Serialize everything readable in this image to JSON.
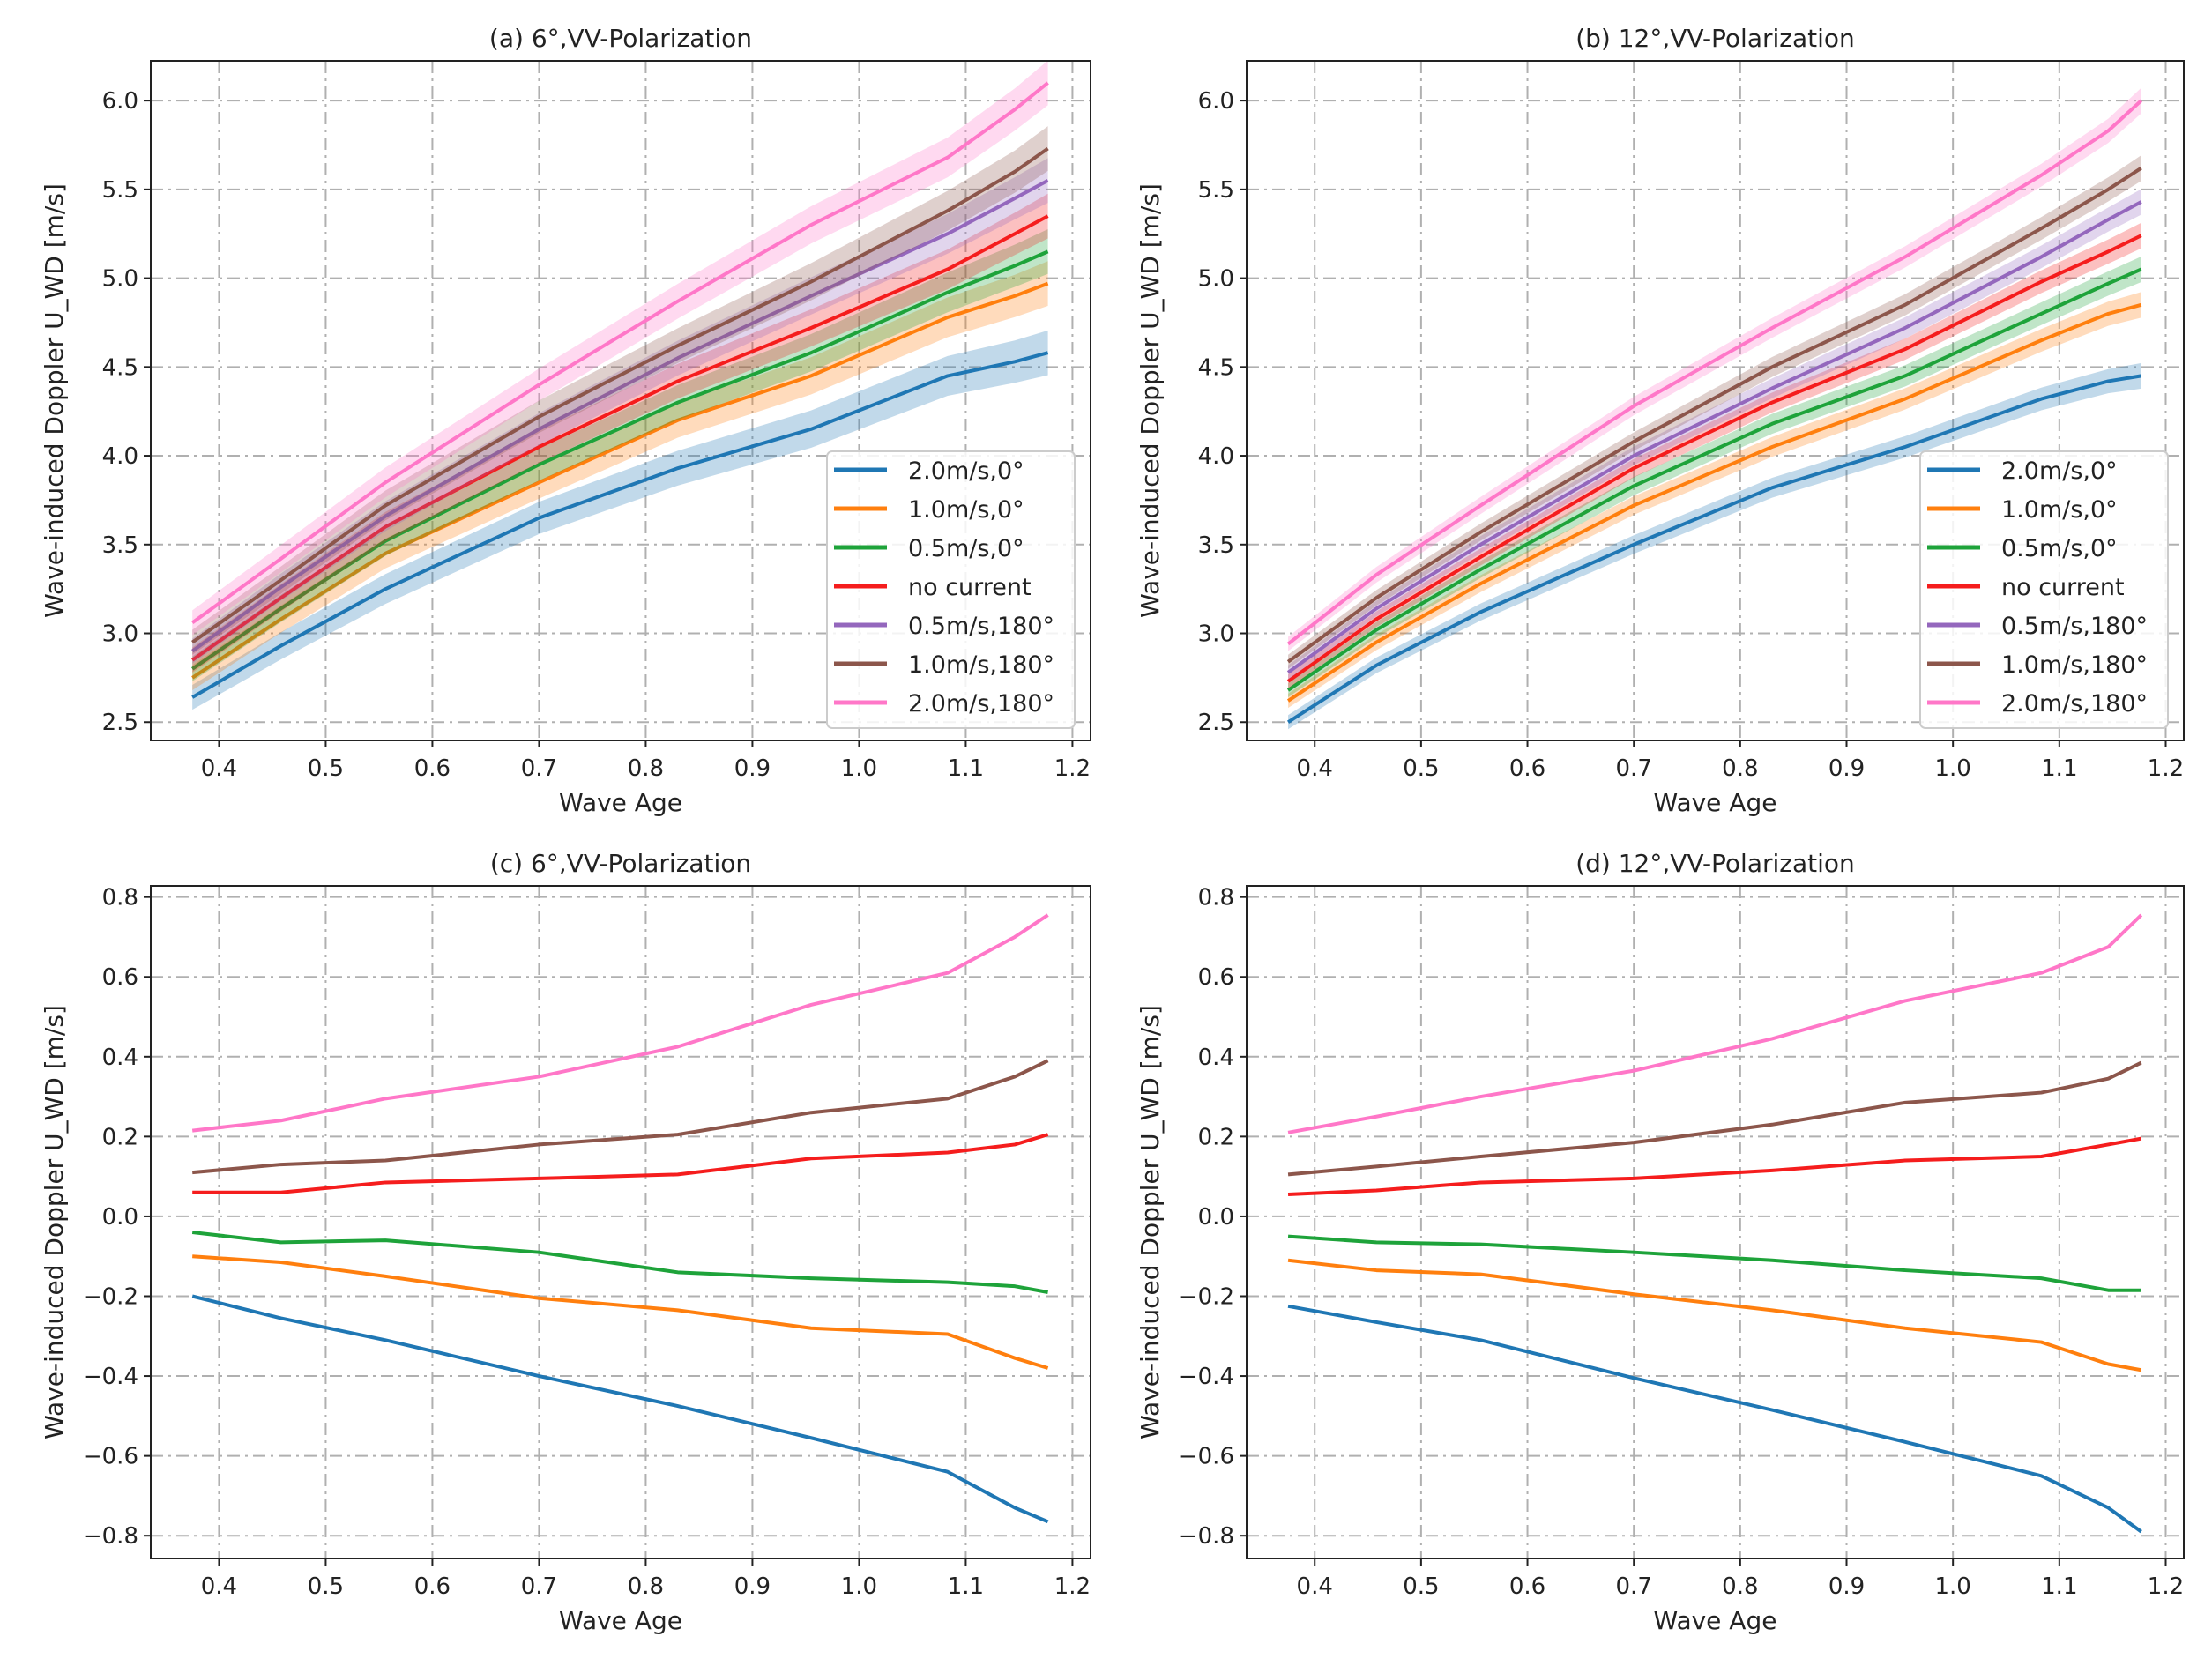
{
  "chart_data": [
    {
      "type": "line",
      "panel": "a",
      "title": "(a) 6°,VV-Polarization",
      "xlabel": "Wave Age",
      "ylabel": "Wave-induced Doppler U_WD [m/s]",
      "xlim": [
        0.336,
        1.217
      ],
      "ylim": [
        2.397,
        6.224
      ],
      "xticks": [
        0.4,
        0.5,
        0.6,
        0.7,
        0.8,
        0.9,
        1.0,
        1.1,
        1.2
      ],
      "xtick_labels": [
        "0.4",
        "0.5",
        "0.6",
        "0.7",
        "0.8",
        "0.9",
        "1.0",
        "1.1",
        "1.2"
      ],
      "yticks": [
        2.5,
        3.0,
        3.5,
        4.0,
        4.5,
        5.0,
        5.5,
        6.0
      ],
      "ytick_labels": [
        "2.5",
        "3.0",
        "3.5",
        "4.0",
        "4.5",
        "5.0",
        "5.5",
        "6.0"
      ],
      "grid": true,
      "legend": "lower-right",
      "band": 0.07,
      "x": [
        0.375,
        0.458,
        0.556,
        0.7,
        0.83,
        0.955,
        1.083,
        1.146,
        1.177
      ],
      "series": [
        {
          "name": "2.0m/s,0°",
          "color": "#1f77b4",
          "values": [
            2.64,
            2.93,
            3.25,
            3.65,
            3.93,
            4.15,
            4.45,
            4.53,
            4.58
          ]
        },
        {
          "name": "1.0m/s,0°",
          "color": "#ff7f0e",
          "values": [
            2.75,
            3.08,
            3.45,
            3.85,
            4.2,
            4.45,
            4.78,
            4.9,
            4.97
          ]
        },
        {
          "name": "0.5m/s,0°",
          "color": "#1ea33a",
          "values": [
            2.8,
            3.14,
            3.52,
            3.95,
            4.3,
            4.58,
            4.92,
            5.07,
            5.15
          ]
        },
        {
          "name": "no current",
          "color": "#f51d1d",
          "values": [
            2.85,
            3.2,
            3.6,
            4.05,
            4.42,
            4.72,
            5.05,
            5.25,
            5.35
          ]
        },
        {
          "name": "0.5m/s,180°",
          "color": "#9467bd",
          "values": [
            2.9,
            3.26,
            3.66,
            4.15,
            4.55,
            4.9,
            5.25,
            5.45,
            5.55
          ]
        },
        {
          "name": "1.0m/s,180°",
          "color": "#8c564b",
          "values": [
            2.95,
            3.3,
            3.72,
            4.22,
            4.62,
            4.98,
            5.38,
            5.6,
            5.73
          ]
        },
        {
          "name": "2.0m/s,180°",
          "color": "#ff77c8",
          "values": [
            3.06,
            3.42,
            3.85,
            4.4,
            4.87,
            5.3,
            5.68,
            5.95,
            6.1
          ]
        }
      ]
    },
    {
      "type": "line",
      "panel": "b",
      "title": "(b) 12°,VV-Polarization",
      "xlabel": "Wave Age",
      "ylabel": "Wave-induced Doppler U_WD [m/s]",
      "xlim": [
        0.336,
        1.217
      ],
      "ylim": [
        2.397,
        6.224
      ],
      "xticks": [
        0.4,
        0.5,
        0.6,
        0.7,
        0.8,
        0.9,
        1.0,
        1.1,
        1.2
      ],
      "xtick_labels": [
        "0.4",
        "0.5",
        "0.6",
        "0.7",
        "0.8",
        "0.9",
        "1.0",
        "1.1",
        "1.2"
      ],
      "yticks": [
        2.5,
        3.0,
        3.5,
        4.0,
        4.5,
        5.0,
        5.5,
        6.0
      ],
      "ytick_labels": [
        "2.5",
        "3.0",
        "3.5",
        "4.0",
        "4.5",
        "5.0",
        "5.5",
        "6.0"
      ],
      "grid": true,
      "legend": "lower-right",
      "band": 0.04,
      "x": [
        0.375,
        0.458,
        0.556,
        0.7,
        0.83,
        0.955,
        1.083,
        1.146,
        1.177
      ],
      "series": [
        {
          "name": "2.0m/s,0°",
          "color": "#1f77b4",
          "values": [
            2.5,
            2.82,
            3.12,
            3.5,
            3.82,
            4.05,
            4.32,
            4.42,
            4.45
          ]
        },
        {
          "name": "1.0m/s,0°",
          "color": "#ff7f0e",
          "values": [
            2.62,
            2.95,
            3.28,
            3.72,
            4.05,
            4.32,
            4.65,
            4.8,
            4.85
          ]
        },
        {
          "name": "0.5m/s,0°",
          "color": "#1ea33a",
          "values": [
            2.68,
            3.02,
            3.36,
            3.83,
            4.18,
            4.45,
            4.8,
            4.97,
            5.05
          ]
        },
        {
          "name": "no current",
          "color": "#f51d1d",
          "values": [
            2.73,
            3.08,
            3.43,
            3.93,
            4.3,
            4.6,
            4.98,
            5.15,
            5.24
          ]
        },
        {
          "name": "0.5m/s,180°",
          "color": "#9467bd",
          "values": [
            2.78,
            3.14,
            3.5,
            4.0,
            4.38,
            4.72,
            5.12,
            5.33,
            5.43
          ]
        },
        {
          "name": "1.0m/s,180°",
          "color": "#8c564b",
          "values": [
            2.84,
            3.2,
            3.57,
            4.08,
            4.5,
            4.85,
            5.28,
            5.5,
            5.62
          ]
        },
        {
          "name": "2.0m/s,180°",
          "color": "#ff77c8",
          "values": [
            2.94,
            3.33,
            3.72,
            4.28,
            4.72,
            5.12,
            5.58,
            5.83,
            6.0
          ]
        }
      ]
    },
    {
      "type": "line",
      "panel": "c",
      "title": "(c) 6°,VV-Polarization",
      "xlabel": "Wave Age",
      "ylabel": "Wave-induced Doppler U_WD [m/s]",
      "xlim": [
        0.336,
        1.217
      ],
      "ylim": [
        -0.857,
        0.828
      ],
      "xticks": [
        0.4,
        0.5,
        0.6,
        0.7,
        0.8,
        0.9,
        1.0,
        1.1,
        1.2
      ],
      "xtick_labels": [
        "0.4",
        "0.5",
        "0.6",
        "0.7",
        "0.8",
        "0.9",
        "1.0",
        "1.1",
        "1.2"
      ],
      "yticks": [
        -0.8,
        -0.6,
        -0.4,
        -0.2,
        0.0,
        0.2,
        0.4,
        0.6,
        0.8
      ],
      "ytick_labels": [
        "−0.8",
        "−0.6",
        "−0.4",
        "−0.2",
        "0.0",
        "0.2",
        "0.4",
        "0.6",
        "0.8"
      ],
      "grid": true,
      "band": 0,
      "x": [
        0.375,
        0.458,
        0.556,
        0.7,
        0.83,
        0.955,
        1.083,
        1.146,
        1.177
      ],
      "series": [
        {
          "name": "2.0m/s,0°",
          "color": "#1f77b4",
          "values": [
            -0.2,
            -0.255,
            -0.31,
            -0.4,
            -0.475,
            -0.555,
            -0.64,
            -0.73,
            -0.765
          ]
        },
        {
          "name": "1.0m/s,0°",
          "color": "#ff7f0e",
          "values": [
            -0.1,
            -0.115,
            -0.15,
            -0.205,
            -0.235,
            -0.28,
            -0.295,
            -0.355,
            -0.38
          ]
        },
        {
          "name": "0.5m/s,0°",
          "color": "#1ea33a",
          "values": [
            -0.04,
            -0.065,
            -0.06,
            -0.09,
            -0.14,
            -0.155,
            -0.165,
            -0.175,
            -0.19
          ]
        },
        {
          "name": "no current",
          "color": "#f51d1d",
          "values": [
            0.06,
            0.06,
            0.085,
            0.095,
            0.105,
            0.145,
            0.16,
            0.18,
            0.205
          ]
        },
        {
          "name": "1.0m/s,180°",
          "color": "#8c564b",
          "values": [
            0.11,
            0.13,
            0.14,
            0.18,
            0.205,
            0.26,
            0.295,
            0.35,
            0.39
          ]
        },
        {
          "name": "2.0m/s,180°",
          "color": "#ff77c8",
          "values": [
            0.215,
            0.24,
            0.295,
            0.35,
            0.425,
            0.53,
            0.61,
            0.7,
            0.755
          ]
        }
      ]
    },
    {
      "type": "line",
      "panel": "d",
      "title": "(d) 12°,VV-Polarization",
      "xlabel": "Wave Age",
      "ylabel": "Wave-induced Doppler U_WD [m/s]",
      "xlim": [
        0.336,
        1.217
      ],
      "ylim": [
        -0.857,
        0.828
      ],
      "xticks": [
        0.4,
        0.5,
        0.6,
        0.7,
        0.8,
        0.9,
        1.0,
        1.1,
        1.2
      ],
      "xtick_labels": [
        "0.4",
        "0.5",
        "0.6",
        "0.7",
        "0.8",
        "0.9",
        "1.0",
        "1.1",
        "1.2"
      ],
      "yticks": [
        -0.8,
        -0.6,
        -0.4,
        -0.2,
        0.0,
        0.2,
        0.4,
        0.6,
        0.8
      ],
      "ytick_labels": [
        "−0.8",
        "−0.6",
        "−0.4",
        "−0.2",
        "0.0",
        "0.2",
        "0.4",
        "0.6",
        "0.8"
      ],
      "grid": true,
      "band": 0,
      "x": [
        0.375,
        0.458,
        0.556,
        0.7,
        0.83,
        0.955,
        1.083,
        1.146,
        1.177
      ],
      "series": [
        {
          "name": "2.0m/s,0°",
          "color": "#1f77b4",
          "values": [
            -0.225,
            -0.265,
            -0.31,
            -0.405,
            -0.485,
            -0.565,
            -0.65,
            -0.73,
            -0.79
          ]
        },
        {
          "name": "1.0m/s,0°",
          "color": "#ff7f0e",
          "values": [
            -0.11,
            -0.135,
            -0.145,
            -0.195,
            -0.235,
            -0.28,
            -0.315,
            -0.37,
            -0.385
          ]
        },
        {
          "name": "0.5m/s,0°",
          "color": "#1ea33a",
          "values": [
            -0.05,
            -0.065,
            -0.07,
            -0.09,
            -0.11,
            -0.135,
            -0.155,
            -0.185,
            -0.185
          ]
        },
        {
          "name": "no current",
          "color": "#f51d1d",
          "values": [
            0.055,
            0.065,
            0.085,
            0.095,
            0.115,
            0.14,
            0.15,
            0.18,
            0.195
          ]
        },
        {
          "name": "1.0m/s,180°",
          "color": "#8c564b",
          "values": [
            0.105,
            0.125,
            0.15,
            0.185,
            0.23,
            0.285,
            0.31,
            0.345,
            0.385
          ]
        },
        {
          "name": "2.0m/s,180°",
          "color": "#ff77c8",
          "values": [
            0.21,
            0.25,
            0.3,
            0.365,
            0.445,
            0.54,
            0.61,
            0.675,
            0.755
          ]
        }
      ]
    }
  ]
}
